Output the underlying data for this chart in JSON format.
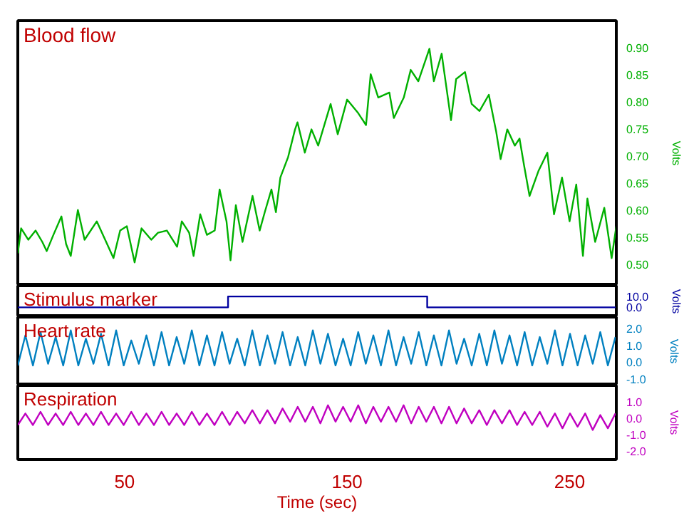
{
  "chart_data": [
    {
      "type": "line",
      "title": "Blood flow",
      "ylabel": "Volts",
      "xlim": [
        2,
        271
      ],
      "ylim": [
        0.46,
        0.95
      ],
      "tick_labels": "y",
      "grid": false,
      "yticks": [
        {
          "value": 0.5,
          "label": "0.50"
        },
        {
          "value": 0.55,
          "label": "0.55"
        },
        {
          "value": 0.6,
          "label": "0.60"
        },
        {
          "value": 0.65,
          "label": "0.65"
        },
        {
          "value": 0.7,
          "label": "0.70"
        },
        {
          "value": 0.75,
          "label": "0.75"
        },
        {
          "value": 0.8,
          "label": "0.80"
        },
        {
          "value": 0.85,
          "label": "0.85"
        },
        {
          "value": 0.9,
          "label": "0.90"
        }
      ],
      "series": [
        {
          "color": "#00b000",
          "x": [
            2,
            3.5,
            6.7,
            10,
            13,
            15,
            18,
            21.6,
            23.7,
            25.8,
            29,
            32,
            37.5,
            41.7,
            45,
            48,
            51,
            54.5,
            57.6,
            62,
            65,
            69,
            73.6,
            75.7,
            79,
            81,
            84,
            87,
            90.5,
            92.7,
            95.8,
            97.6,
            100,
            103,
            107.5,
            110.7,
            113,
            116,
            118,
            120,
            123.5,
            126.6,
            127.7,
            131,
            134,
            137,
            142.6,
            145.8,
            150,
            155,
            158.5,
            160.6,
            164,
            169,
            171,
            175.5,
            178.6,
            182,
            187,
            189,
            192.5,
            196.7,
            199,
            203,
            206,
            209.5,
            213.7,
            217,
            219,
            222,
            225.4,
            227.5,
            229.6,
            232,
            236,
            240,
            243,
            246.6,
            250,
            253,
            256,
            258,
            261.5,
            265.6,
            268.9,
            271
          ],
          "values": [
            0.52,
            0.566,
            0.545,
            0.562,
            0.541,
            0.524,
            0.554,
            0.588,
            0.537,
            0.515,
            0.6,
            0.545,
            0.579,
            0.541,
            0.511,
            0.562,
            0.57,
            0.503,
            0.566,
            0.545,
            0.558,
            0.562,
            0.532,
            0.579,
            0.558,
            0.515,
            0.592,
            0.554,
            0.562,
            0.638,
            0.579,
            0.507,
            0.609,
            0.541,
            0.626,
            0.562,
            0.596,
            0.638,
            0.596,
            0.66,
            0.698,
            0.749,
            0.762,
            0.706,
            0.749,
            0.719,
            0.796,
            0.74,
            0.804,
            0.779,
            0.757,
            0.851,
            0.808,
            0.817,
            0.77,
            0.808,
            0.859,
            0.838,
            0.898,
            0.838,
            0.889,
            0.766,
            0.842,
            0.855,
            0.796,
            0.783,
            0.813,
            0.745,
            0.694,
            0.749,
            0.719,
            0.732,
            0.681,
            0.626,
            0.672,
            0.706,
            0.592,
            0.66,
            0.579,
            0.647,
            0.515,
            0.621,
            0.541,
            0.604,
            0.511,
            0.57
          ]
        }
      ]
    },
    {
      "type": "line",
      "title": "Stimulus marker",
      "ylabel": "Volts",
      "xlim": [
        2,
        271
      ],
      "ylim": [
        -9,
        20
      ],
      "tick_labels": "y",
      "grid": false,
      "yticks": [
        {
          "value": 0,
          "label": "0.0"
        },
        {
          "value": 10,
          "label": "10.0"
        }
      ],
      "series": [
        {
          "color": "#0000a0",
          "x": [
            2,
            96.5,
            96.5,
            186,
            186,
            271
          ],
          "values": [
            0,
            0,
            10,
            10,
            0,
            0
          ]
        }
      ]
    },
    {
      "type": "line",
      "title": "Heart rate",
      "ylabel": "Volts",
      "xlim": [
        2,
        271
      ],
      "ylim": [
        -1.4,
        2.7
      ],
      "tick_labels": "y",
      "grid": false,
      "yticks": [
        {
          "value": -1,
          "label": "-1.0"
        },
        {
          "value": 0,
          "label": "0.0"
        },
        {
          "value": 1,
          "label": "1.0"
        },
        {
          "value": 2,
          "label": "2.0"
        }
      ],
      "series": [
        {
          "color": "#0080c0",
          "x": [
            2,
            5.4,
            8.8,
            12.2,
            15.6,
            19,
            22.4,
            25.8,
            29.2,
            32.6,
            36,
            39.4,
            42.8,
            46.2,
            49.6,
            53,
            56.4,
            59.8,
            63.2,
            66.6,
            70,
            73.4,
            76.8,
            80.2,
            83.6,
            87,
            90.4,
            93.8,
            97.2,
            100.6,
            104,
            107.4,
            110.8,
            114.2,
            117.6,
            121,
            124.4,
            127.8,
            131.2,
            134.6,
            138,
            141.4,
            144.8,
            148.2,
            151.6,
            155,
            158.4,
            161.8,
            165.2,
            168.6,
            172,
            175.4,
            178.8,
            182.2,
            185.6,
            189,
            192.4,
            195.8,
            199.2,
            202.6,
            206,
            209.4,
            212.8,
            216.2,
            219.6,
            223,
            226.4,
            229.8,
            233.2,
            236.6,
            240,
            243.4,
            246.8,
            250.2,
            253.6,
            257,
            260.4,
            263.8,
            267.2,
            270.6
          ],
          "values": [
            -0.2,
            1.6,
            -0.2,
            1.8,
            -0.1,
            1.5,
            -0.2,
            1.9,
            -0.2,
            1.4,
            -0.1,
            1.7,
            -0.2,
            1.9,
            -0.2,
            1.3,
            -0.1,
            1.6,
            -0.2,
            1.8,
            -0.2,
            1.5,
            -0.1,
            1.9,
            -0.2,
            1.6,
            -0.2,
            1.8,
            -0.1,
            1.4,
            -0.2,
            1.9,
            -0.2,
            1.6,
            -0.1,
            1.8,
            -0.2,
            1.5,
            -0.2,
            1.9,
            -0.1,
            1.7,
            -0.2,
            1.4,
            -0.2,
            1.8,
            -0.1,
            1.6,
            -0.2,
            1.9,
            -0.2,
            1.5,
            -0.1,
            1.8,
            -0.2,
            1.6,
            -0.2,
            1.9,
            -0.1,
            1.4,
            -0.2,
            1.7,
            -0.2,
            1.9,
            -0.1,
            1.6,
            -0.2,
            1.8,
            -0.2,
            1.5,
            -0.1,
            1.9,
            -0.2,
            1.7,
            -0.2,
            1.6,
            -0.1,
            1.8,
            -0.2,
            1.5
          ]
        }
      ]
    },
    {
      "type": "line",
      "title": "Respiration",
      "ylabel": "Volts",
      "xlabel": "Time (sec)",
      "xlim": [
        2,
        271
      ],
      "ylim": [
        -2.5,
        2.0
      ],
      "grid": false,
      "xticks": [
        50,
        150,
        250
      ],
      "yticks": [
        {
          "value": -2,
          "label": "-2.0"
        },
        {
          "value": -1,
          "label": "-1.0"
        },
        {
          "value": 0,
          "label": "0.0"
        },
        {
          "value": 1,
          "label": "1.0"
        }
      ],
      "series": [
        {
          "color": "#c000c0",
          "x": [
            2,
            5.4,
            8.8,
            12.2,
            15.6,
            19,
            22.4,
            25.8,
            29.2,
            32.6,
            36,
            39.4,
            42.8,
            46.2,
            49.6,
            53,
            56.4,
            59.8,
            63.2,
            66.6,
            70,
            73.4,
            76.8,
            80.2,
            83.6,
            87,
            90.4,
            93.8,
            97.2,
            100.6,
            104,
            107.4,
            110.8,
            114.2,
            117.6,
            121,
            124.4,
            127.8,
            131.2,
            134.6,
            138,
            141.4,
            144.8,
            148.2,
            151.6,
            155,
            158.4,
            161.8,
            165.2,
            168.6,
            172,
            175.4,
            178.8,
            182.2,
            185.6,
            189,
            192.4,
            195.8,
            199.2,
            202.6,
            206,
            209.4,
            212.8,
            216.2,
            219.6,
            223,
            226.4,
            229.8,
            233.2,
            236.6,
            240,
            243.4,
            246.8,
            250.2,
            253.6,
            257,
            260.4,
            263.8,
            267.2,
            270.6
          ],
          "values": [
            -0.4,
            0.3,
            -0.4,
            0.4,
            -0.4,
            0.3,
            -0.4,
            0.4,
            -0.4,
            0.3,
            -0.4,
            0.4,
            -0.4,
            0.3,
            -0.4,
            0.4,
            -0.4,
            0.3,
            -0.4,
            0.4,
            -0.4,
            0.3,
            -0.4,
            0.4,
            -0.4,
            0.3,
            -0.4,
            0.4,
            -0.4,
            0.4,
            -0.3,
            0.5,
            -0.3,
            0.5,
            -0.3,
            0.6,
            -0.2,
            0.7,
            -0.2,
            0.7,
            -0.3,
            0.8,
            -0.2,
            0.7,
            -0.2,
            0.8,
            -0.3,
            0.7,
            -0.2,
            0.7,
            -0.2,
            0.8,
            -0.3,
            0.7,
            -0.2,
            0.7,
            -0.3,
            0.7,
            -0.3,
            0.6,
            -0.3,
            0.5,
            -0.4,
            0.5,
            -0.3,
            0.5,
            -0.4,
            0.4,
            -0.4,
            0.4,
            -0.5,
            0.3,
            -0.6,
            0.3,
            -0.5,
            0.3,
            -0.7,
            0.2,
            -0.6,
            0.3
          ]
        }
      ]
    }
  ]
}
